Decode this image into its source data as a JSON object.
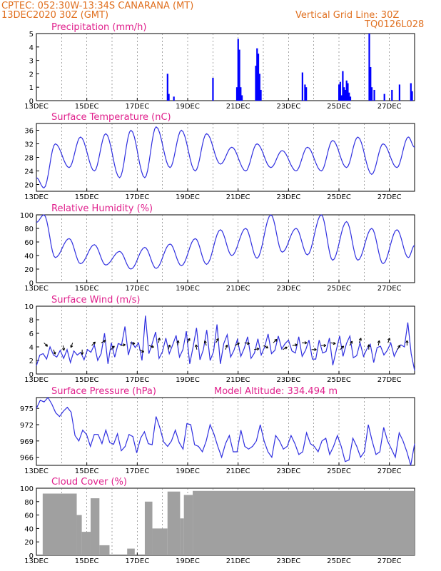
{
  "header": {
    "line1": "CPTEC:   052:30W-13:34S   CANARANA (MT)",
    "line2": "13DEC2020 30Z (GMT)",
    "right1": "Vertical Grid Line: 30Z",
    "right2": "TQ0126L028"
  },
  "chart_data": [
    {
      "type": "bar",
      "title": "Precipitation (mm/h)",
      "ylim": [
        0,
        5
      ],
      "yticks": [
        "0",
        "1",
        "2",
        "3",
        "4",
        "5"
      ],
      "color": "#0000ff",
      "x": [
        18.2,
        18.25,
        18.45,
        20.0,
        20.95,
        21.0,
        21.05,
        21.1,
        21.15,
        21.7,
        21.75,
        21.8,
        21.85,
        21.9,
        23.55,
        23.65,
        23.7,
        25.0,
        25.05,
        25.1,
        25.15,
        25.2,
        25.25,
        25.3,
        25.35,
        25.4,
        25.45,
        26.2,
        26.25,
        26.3,
        26.4,
        26.8,
        27.1,
        27.4,
        27.85,
        27.9
      ],
      "values": [
        2.0,
        0.5,
        0.3,
        1.7,
        1.0,
        4.6,
        3.8,
        1.0,
        0.4,
        2.6,
        3.9,
        3.5,
        2.0,
        0.8,
        2.1,
        1.2,
        1.0,
        1.2,
        1.4,
        0.4,
        2.2,
        1.0,
        0.8,
        1.5,
        1.3,
        0.6,
        0.3,
        5.0,
        2.5,
        1.0,
        0.8,
        0.5,
        0.8,
        1.2,
        1.3,
        0.7
      ]
    },
    {
      "type": "line",
      "title": "Surface Temperature (nC)",
      "ylim": [
        18,
        38
      ],
      "yticks": [
        "20",
        "24",
        "28",
        "32",
        "36"
      ],
      "color": "#3030e0",
      "min_hour_offset": 0.35,
      "max_hour_offset": 0.8,
      "series": [
        {
          "days": 13.0,
          "values": [
            22.0
          ]
        },
        {
          "days_min": [
            13.3,
            14.3,
            15.3,
            16.3,
            17.3,
            18.3,
            19.3,
            20.3,
            21.3,
            22.3,
            23.3,
            24.3,
            25.3,
            26.3,
            27.3
          ],
          "mins": [
            19,
            25,
            24,
            22,
            22,
            25,
            24,
            26,
            24,
            25,
            24,
            24,
            25,
            23,
            25
          ],
          "days_max": [
            13.75,
            14.75,
            15.75,
            16.75,
            17.75,
            18.75,
            19.75,
            20.75,
            21.75,
            22.75,
            23.75,
            24.75,
            25.75,
            26.75,
            27.75
          ],
          "maxs": [
            32,
            34,
            35,
            36,
            37,
            36,
            35,
            31,
            32,
            30,
            31,
            33,
            34,
            32,
            34
          ],
          "end_value": 31
        }
      ]
    },
    {
      "type": "line",
      "title": "Relative Humidity (%)",
      "ylim": [
        0,
        100
      ],
      "yticks": [
        "0",
        "20",
        "40",
        "60",
        "80",
        "100"
      ],
      "color": "#3030e0",
      "series": [
        {
          "days_min": [
            13.75,
            14.75,
            15.75,
            16.75,
            17.75,
            18.75,
            19.75,
            20.75,
            21.75,
            22.75,
            23.75,
            24.75,
            25.75,
            26.75,
            27.75
          ],
          "mins": [
            37,
            28,
            26,
            20,
            21,
            25,
            27,
            40,
            36,
            45,
            41,
            33,
            33,
            28,
            37
          ],
          "days_max": [
            13.3,
            14.3,
            15.3,
            16.3,
            17.3,
            18.3,
            19.3,
            20.3,
            21.3,
            22.3,
            23.3,
            24.3,
            25.3,
            26.3,
            27.3
          ],
          "maxs": [
            100,
            65,
            56,
            46,
            52,
            57,
            65,
            78,
            80,
            100,
            80,
            100,
            90,
            80,
            78
          ],
          "start_value": 89,
          "end_value": 55
        }
      ]
    },
    {
      "type": "line",
      "title": "Surface Wind (m/s)",
      "ylim": [
        0,
        10
      ],
      "yticks": [
        "0",
        "2",
        "4",
        "6",
        "8",
        "10"
      ],
      "color": "#3030e0",
      "note": "wind speed with direction arrows",
      "values": [
        1.2,
        2.8,
        3.0,
        2.2,
        4.0,
        2.8,
        2.5,
        3.5,
        2.3,
        3.6,
        1.7,
        3.4,
        2.8,
        3.2,
        2.1,
        3.6,
        3.2,
        4.3,
        2.0,
        3.0,
        6.0,
        1.5,
        4.6,
        2.5,
        4.5,
        4.3,
        7.0,
        2.8,
        4.7,
        3.9,
        4.6,
        2.0,
        8.6,
        3.0,
        4.5,
        6.2,
        2.3,
        3.3,
        5.3,
        3.0,
        4.3,
        5.7,
        2.5,
        3.6,
        6.3,
        1.5,
        4.0,
        6.8,
        2.1,
        3.6,
        6.5,
        2.0,
        3.3,
        7.3,
        1.5,
        4.5,
        5.8,
        2.5,
        3.5,
        5.1,
        2.6,
        3.8,
        5.5,
        2.3,
        3.1,
        5.2,
        2.8,
        4.0,
        5.9,
        3.0,
        3.5,
        5.6,
        3.7,
        4.5,
        5.0,
        3.4,
        3.1,
        5.5,
        2.6,
        3.5,
        5.0,
        2.2,
        2.2,
        5.0,
        3.1,
        3.3,
        5.3,
        1.3,
        3.5,
        5.6,
        2.6,
        4.5,
        5.6,
        2.4,
        2.7,
        4.6,
        2.6,
        3.7,
        4.4,
        1.7,
        3.9,
        4.1,
        2.8,
        3.5,
        4.6,
        2.6,
        3.7,
        4.3,
        4.0,
        7.6,
        3.0,
        0.5
      ],
      "arrows_dir_deg": [
        135,
        160,
        170,
        200,
        180,
        45,
        60,
        45,
        80,
        100,
        120,
        110,
        10,
        20,
        5,
        30,
        350,
        340,
        30,
        20,
        60,
        100,
        80,
        120,
        45,
        60,
        80,
        90,
        90,
        90,
        100,
        45,
        30,
        20,
        0,
        10,
        20,
        30,
        0
      ]
    },
    {
      "type": "line",
      "title": "Surface Pressure (hPa)",
      "subtitle": "Model Altitude: 334.494 m",
      "ylim": [
        964.5,
        977
      ],
      "yticks": [
        "966",
        "969",
        "972",
        "975"
      ],
      "color": "#3030e0",
      "values": [
        975.0,
        976.5,
        976.2,
        977.0,
        975.8,
        974.2,
        973.5,
        974.5,
        975.2,
        974.3,
        970.0,
        969.0,
        971.0,
        970.2,
        968.0,
        970.2,
        970.2,
        968.5,
        971.0,
        968.7,
        968.4,
        970.3,
        967.2,
        968.0,
        970.2,
        969.8,
        966.8,
        969.5,
        970.7,
        968.5,
        968.3,
        973.5,
        971.4,
        968.8,
        968.0,
        969.0,
        971.0,
        968.7,
        967.5,
        972.2,
        972.0,
        968.3,
        968.0,
        967.0,
        969.0,
        972.0,
        970.3,
        968.0,
        966.0,
        968.5,
        970.0,
        967.0,
        967.0,
        971.0,
        968.0,
        967.5,
        968.0,
        969.0,
        972.0,
        969.0,
        967.0,
        966.0,
        970.0,
        969.0,
        967.5,
        968.0,
        970.0,
        968.5,
        966.5,
        967.0,
        970.5,
        968.5,
        968.0,
        967.0,
        969.0,
        969.5,
        966.5,
        968.0,
        970.0,
        968.0,
        965.2,
        965.5,
        969.5,
        968.0,
        966.0,
        967.0,
        972.0,
        969.0,
        966.5,
        967.0,
        971.5,
        969.0,
        967.5,
        966.0,
        970.5,
        969.0,
        967.0,
        964.5,
        968.5
      ],
      "start_day": 13.0,
      "end_day": 28.0
    },
    {
      "type": "area",
      "title": "Cloud Cover (%)",
      "ylim": [
        0,
        100
      ],
      "yticks": [
        "0",
        "20",
        "40",
        "60",
        "80",
        "100"
      ],
      "color": "#a0a0a0",
      "segments": [
        {
          "from": 13.0,
          "to": 13.25,
          "value": 0
        },
        {
          "from": 13.25,
          "to": 14.6,
          "value": 92
        },
        {
          "from": 14.6,
          "to": 14.8,
          "value": 60
        },
        {
          "from": 14.8,
          "to": 15.15,
          "value": 35
        },
        {
          "from": 15.15,
          "to": 15.5,
          "value": 85
        },
        {
          "from": 15.5,
          "to": 15.9,
          "value": 15
        },
        {
          "from": 15.9,
          "to": 16.6,
          "value": 0
        },
        {
          "from": 16.6,
          "to": 16.9,
          "value": 10
        },
        {
          "from": 16.9,
          "to": 17.3,
          "value": 0
        },
        {
          "from": 17.3,
          "to": 17.6,
          "value": 80
        },
        {
          "from": 17.6,
          "to": 18.2,
          "value": 40
        },
        {
          "from": 18.2,
          "to": 18.7,
          "value": 95
        },
        {
          "from": 18.7,
          "to": 18.85,
          "value": 55
        },
        {
          "from": 18.85,
          "to": 19.2,
          "value": 90
        },
        {
          "from": 19.2,
          "to": 28.0,
          "value": 96
        }
      ]
    }
  ],
  "x_ticks": [
    "13DEC",
    "15DEC",
    "17DEC",
    "19DEC",
    "21DEC",
    "23DEC",
    "25DEC",
    "27DEC"
  ]
}
